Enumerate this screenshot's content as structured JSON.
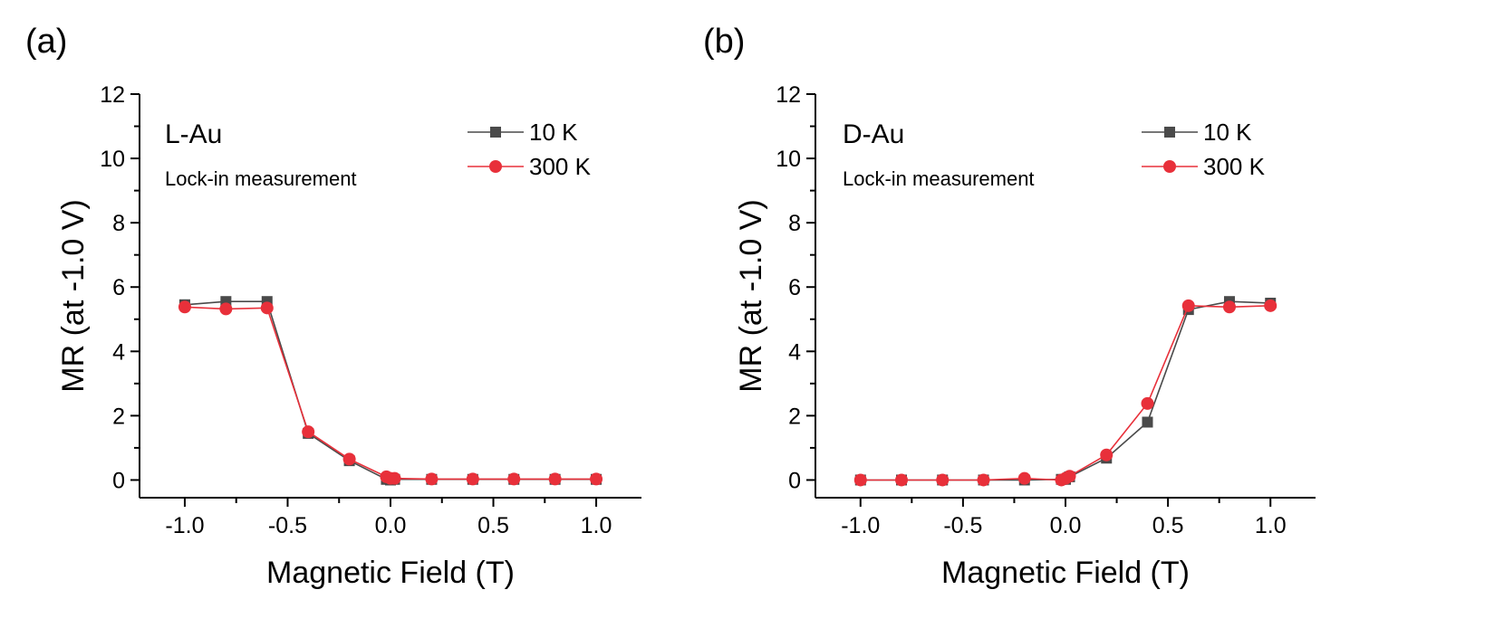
{
  "chart_data": [
    {
      "type": "line",
      "panel_label": "(a)",
      "title": "L-Au",
      "subtitle": "Lock-in measurement",
      "xlabel": "Magnetic Field (T)",
      "ylabel": "MR (at -1.0 V)",
      "xlim": [
        -1.22,
        1.22
      ],
      "ylim": [
        -0.55,
        12
      ],
      "xticks": [
        -1.0,
        -0.5,
        0.0,
        0.5,
        1.0
      ],
      "xtick_labels": [
        "-1.0",
        "-0.5",
        "0.0",
        "0.5",
        "1.0"
      ],
      "yticks": [
        0,
        2,
        4,
        6,
        8,
        10,
        12
      ],
      "ytick_labels": [
        "0",
        "2",
        "4",
        "6",
        "8",
        "10",
        "12"
      ],
      "legend_position": "top-right",
      "grid": false,
      "series": [
        {
          "name": "10 K",
          "color": "#4a4a4a",
          "marker": "square",
          "x": [
            -1.0,
            -0.8,
            -0.6,
            -0.4,
            -0.2,
            -0.02,
            0.0,
            0.02,
            0.2,
            0.4,
            0.6,
            0.8,
            1.0
          ],
          "y": [
            5.45,
            5.55,
            5.55,
            1.45,
            0.6,
            0.02,
            0.0,
            0.02,
            0.02,
            0.02,
            0.02,
            0.02,
            0.02
          ]
        },
        {
          "name": "300 K",
          "color": "#e8303a",
          "marker": "circle",
          "x": [
            -1.0,
            -0.8,
            -0.6,
            -0.4,
            -0.2,
            -0.02,
            0.0,
            0.02,
            0.2,
            0.4,
            0.6,
            0.8,
            1.0
          ],
          "y": [
            5.38,
            5.32,
            5.35,
            1.5,
            0.65,
            0.1,
            0.05,
            0.05,
            0.03,
            0.03,
            0.03,
            0.03,
            0.03
          ]
        }
      ]
    },
    {
      "type": "line",
      "panel_label": "(b)",
      "title": "D-Au",
      "subtitle": "Lock-in measurement",
      "xlabel": "Magnetic Field (T)",
      "ylabel": "MR (at -1.0 V)",
      "xlim": [
        -1.22,
        1.22
      ],
      "ylim": [
        -0.55,
        12
      ],
      "xticks": [
        -1.0,
        -0.5,
        0.0,
        0.5,
        1.0
      ],
      "xtick_labels": [
        "-1.0",
        "-0.5",
        "0.0",
        "0.5",
        "1.0"
      ],
      "yticks": [
        0,
        2,
        4,
        6,
        8,
        10,
        12
      ],
      "ytick_labels": [
        "0",
        "2",
        "4",
        "6",
        "8",
        "10",
        "12"
      ],
      "legend_position": "top-right",
      "grid": false,
      "series": [
        {
          "name": "10 K",
          "color": "#4a4a4a",
          "marker": "square",
          "x": [
            -1.0,
            -0.8,
            -0.6,
            -0.4,
            -0.2,
            -0.02,
            0.0,
            0.02,
            0.2,
            0.4,
            0.6,
            0.8,
            1.0
          ],
          "y": [
            0.0,
            0.0,
            0.0,
            0.0,
            0.0,
            0.02,
            0.02,
            0.1,
            0.68,
            1.8,
            5.3,
            5.55,
            5.5
          ]
        },
        {
          "name": "300 K",
          "color": "#e8303a",
          "marker": "circle",
          "x": [
            -1.0,
            -0.8,
            -0.6,
            -0.4,
            -0.2,
            -0.02,
            0.0,
            0.02,
            0.2,
            0.4,
            0.6,
            0.8,
            1.0
          ],
          "y": [
            0.0,
            0.0,
            0.0,
            0.0,
            0.05,
            0.0,
            0.05,
            0.12,
            0.78,
            2.38,
            5.42,
            5.38,
            5.42
          ]
        }
      ]
    }
  ]
}
